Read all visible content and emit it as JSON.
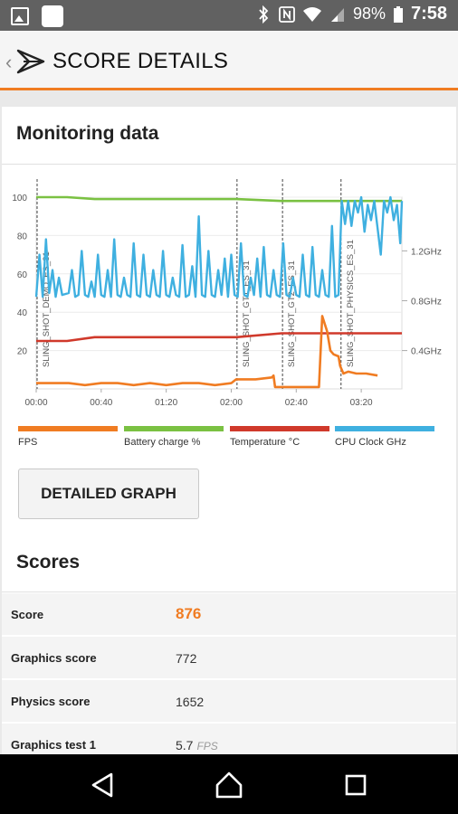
{
  "status_bar": {
    "battery": "98%",
    "time": "7:58"
  },
  "toolbar": {
    "title": "SCORE DETAILS"
  },
  "monitoring": {
    "title": "Monitoring data",
    "button_label": "DETAILED GRAPH"
  },
  "legend": [
    {
      "label": "FPS",
      "color": "#f07c22"
    },
    {
      "label": "Battery charge %",
      "color": "#7ac142"
    },
    {
      "label": "Temperature °C",
      "color": "#d0392b"
    },
    {
      "label": "CPU Clock GHz",
      "color": "#3fb0e0"
    }
  ],
  "chart_data": {
    "type": "line",
    "x_ticks": [
      "00:00",
      "00:40",
      "01:20",
      "02:00",
      "02:40",
      "03:20"
    ],
    "y_ticks_left": [
      "20",
      "40",
      "60",
      "80",
      "100"
    ],
    "y_ticks_right": [
      "0.4GHz",
      "0.8GHz",
      "1.2GHz"
    ],
    "ylim": [
      0,
      100
    ],
    "xlim_seconds": [
      0,
      225
    ],
    "markers": [
      {
        "label": "SLING_SHOT_DEMO_ES_31",
        "t": 0
      },
      {
        "label": "SLING_SHOT_GT1_ES_31",
        "t": 123
      },
      {
        "label": "SLING_SHOT_GT2_ES_31",
        "t": 151
      },
      {
        "label": "SLING_SHOT_PHYSICS_ES_31",
        "t": 187
      }
    ],
    "series": [
      {
        "name": "Battery charge %",
        "color": "#7ac142",
        "points": [
          [
            0,
            100
          ],
          [
            19,
            100
          ],
          [
            36,
            99
          ],
          [
            123,
            99
          ],
          [
            151,
            98
          ],
          [
            187,
            98
          ],
          [
            225,
            98
          ]
        ]
      },
      {
        "name": "Temperature °C",
        "color": "#d0392b",
        "points": [
          [
            0,
            25
          ],
          [
            19,
            25
          ],
          [
            36,
            27
          ],
          [
            123,
            27
          ],
          [
            151,
            29
          ],
          [
            225,
            29
          ]
        ]
      },
      {
        "name": "FPS",
        "color": "#f07c22",
        "points": [
          [
            0,
            3
          ],
          [
            10,
            3
          ],
          [
            20,
            3
          ],
          [
            30,
            2
          ],
          [
            40,
            3
          ],
          [
            50,
            3
          ],
          [
            60,
            2
          ],
          [
            70,
            3
          ],
          [
            80,
            2
          ],
          [
            90,
            3
          ],
          [
            100,
            3
          ],
          [
            110,
            2
          ],
          [
            120,
            3
          ],
          [
            123,
            5
          ],
          [
            135,
            5
          ],
          [
            145,
            6
          ],
          [
            146,
            7
          ],
          [
            147,
            1
          ],
          [
            151,
            1
          ],
          [
            170,
            1
          ],
          [
            174,
            1
          ],
          [
            176,
            38
          ],
          [
            179,
            30
          ],
          [
            181,
            20
          ],
          [
            183,
            18
          ],
          [
            186,
            17
          ],
          [
            187,
            12
          ],
          [
            189,
            8
          ],
          [
            192,
            9
          ],
          [
            197,
            8
          ],
          [
            203,
            8
          ],
          [
            210,
            7
          ]
        ]
      },
      {
        "name": "CPU Clock GHz",
        "color": "#3fb0e0",
        "points": [
          [
            0,
            48
          ],
          [
            2,
            70
          ],
          [
            4,
            48
          ],
          [
            6,
            78
          ],
          [
            8,
            50
          ],
          [
            10,
            62
          ],
          [
            12,
            48
          ],
          [
            14,
            58
          ],
          [
            16,
            49
          ],
          [
            20,
            50
          ],
          [
            22,
            62
          ],
          [
            24,
            48
          ],
          [
            26,
            49
          ],
          [
            28,
            72
          ],
          [
            30,
            49
          ],
          [
            32,
            48
          ],
          [
            34,
            56
          ],
          [
            36,
            48
          ],
          [
            38,
            70
          ],
          [
            40,
            49
          ],
          [
            42,
            48
          ],
          [
            44,
            62
          ],
          [
            46,
            48
          ],
          [
            48,
            78
          ],
          [
            50,
            49
          ],
          [
            52,
            48
          ],
          [
            54,
            58
          ],
          [
            56,
            49
          ],
          [
            58,
            48
          ],
          [
            60,
            76
          ],
          [
            62,
            49
          ],
          [
            64,
            48
          ],
          [
            66,
            70
          ],
          [
            68,
            49
          ],
          [
            70,
            48
          ],
          [
            72,
            62
          ],
          [
            74,
            49
          ],
          [
            76,
            48
          ],
          [
            78,
            72
          ],
          [
            80,
            49
          ],
          [
            82,
            48
          ],
          [
            84,
            58
          ],
          [
            86,
            49
          ],
          [
            88,
            48
          ],
          [
            90,
            75
          ],
          [
            92,
            48
          ],
          [
            94,
            49
          ],
          [
            96,
            64
          ],
          [
            98,
            48
          ],
          [
            100,
            90
          ],
          [
            102,
            49
          ],
          [
            104,
            48
          ],
          [
            106,
            72
          ],
          [
            108,
            49
          ],
          [
            110,
            48
          ],
          [
            112,
            62
          ],
          [
            114,
            49
          ],
          [
            116,
            68
          ],
          [
            118,
            48
          ],
          [
            120,
            70
          ],
          [
            122,
            49
          ],
          [
            124,
            48
          ],
          [
            126,
            76
          ],
          [
            128,
            49
          ],
          [
            130,
            48
          ],
          [
            132,
            58
          ],
          [
            134,
            49
          ],
          [
            136,
            68
          ],
          [
            138,
            48
          ],
          [
            140,
            74
          ],
          [
            142,
            49
          ],
          [
            144,
            48
          ],
          [
            146,
            62
          ],
          [
            148,
            49
          ],
          [
            150,
            48
          ],
          [
            152,
            76
          ],
          [
            154,
            49
          ],
          [
            156,
            48
          ],
          [
            158,
            58
          ],
          [
            160,
            49
          ],
          [
            162,
            48
          ],
          [
            164,
            70
          ],
          [
            166,
            49
          ],
          [
            168,
            48
          ],
          [
            170,
            74
          ],
          [
            172,
            49
          ],
          [
            174,
            48
          ],
          [
            176,
            62
          ],
          [
            178,
            49
          ],
          [
            180,
            48
          ],
          [
            182,
            85
          ],
          [
            184,
            48
          ],
          [
            186,
            49
          ],
          [
            188,
            98
          ],
          [
            190,
            86
          ],
          [
            192,
            98
          ],
          [
            194,
            85
          ],
          [
            196,
            98
          ],
          [
            198,
            92
          ],
          [
            200,
            100
          ],
          [
            202,
            82
          ],
          [
            204,
            96
          ],
          [
            206,
            88
          ],
          [
            208,
            98
          ],
          [
            210,
            84
          ],
          [
            212,
            70
          ],
          [
            214,
            98
          ],
          [
            216,
            92
          ],
          [
            218,
            100
          ],
          [
            220,
            88
          ],
          [
            222,
            96
          ],
          [
            224,
            76
          ],
          [
            225,
            98
          ]
        ]
      }
    ]
  },
  "scores": {
    "title": "Scores",
    "rows": [
      {
        "label": "Score",
        "value": "876",
        "unit": ""
      },
      {
        "label": "Graphics score",
        "value": "772",
        "unit": ""
      },
      {
        "label": "Physics score",
        "value": "1652",
        "unit": ""
      },
      {
        "label": "Graphics test 1",
        "value": "5.7",
        "unit": "FPS"
      }
    ]
  }
}
